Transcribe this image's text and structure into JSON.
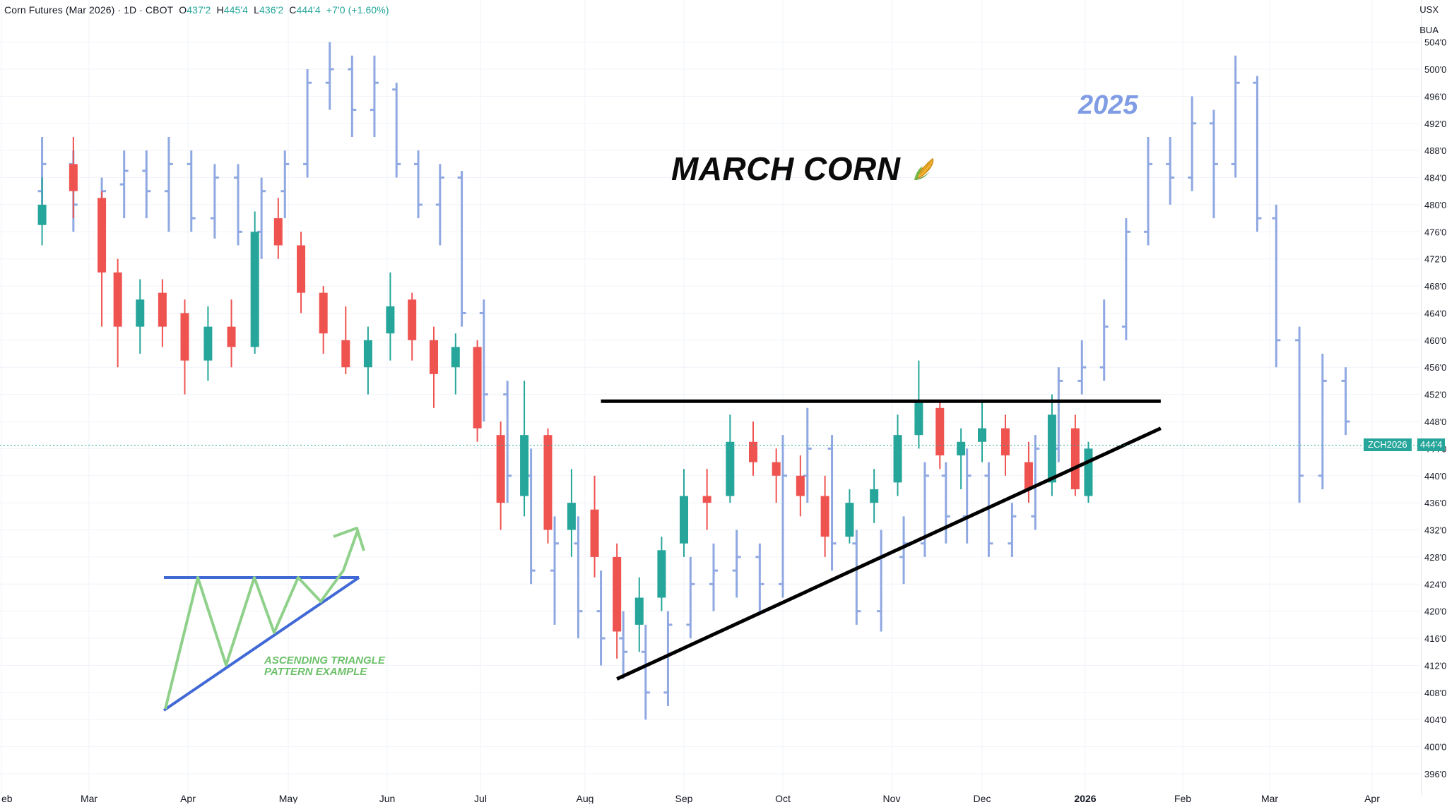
{
  "header": {
    "symbol": "Corn Futures (Mar 2026) · 1D · CBOT",
    "open_label": "O",
    "open": "437'2",
    "high_label": "H",
    "high": "445'4",
    "low_label": "L",
    "low": "436'2",
    "close_label": "C",
    "close": "444'4",
    "change": "+7'0 (+1.60%)"
  },
  "currency": "USX",
  "unit": "BUA",
  "title": "MARCH CORN",
  "title_icon": "corn-icon",
  "overlay_label": "2025",
  "pattern_note": [
    "ASCENDING TRIANGLE",
    "PATTERN EXAMPLE"
  ],
  "last_price_symbol": "ZCH2026",
  "last_price": "444'4",
  "colors": {
    "up": "#26a69a",
    "down": "#ef5350",
    "overlay": "#8fa8e2",
    "triangle": "#4169d6",
    "triangle_path": "#8fd18a",
    "trendline": "#000000",
    "grid": "#f0f3fa"
  },
  "chart_data": {
    "type": "candlestick",
    "title": "Corn Futures (Mar 2026) · 1D · CBOT",
    "ylim": [
      394,
      508
    ],
    "y_ticks": [
      "396'0",
      "400'0",
      "404'0",
      "408'0",
      "412'0",
      "416'0",
      "420'0",
      "424'0",
      "428'0",
      "432'0",
      "436'0",
      "440'0",
      "444'0",
      "448'0",
      "452'0",
      "456'0",
      "460'0",
      "464'0",
      "468'0",
      "472'0",
      "476'0",
      "480'0",
      "484'0",
      "488'0",
      "492'0",
      "496'0",
      "500'0",
      "504'0"
    ],
    "x_ticks": [
      "eb",
      "Mar",
      "Apr",
      "May",
      "Jun",
      "Jul",
      "Aug",
      "Sep",
      "Oct",
      "Nov",
      "Dec",
      "2026",
      "Feb",
      "Mar",
      "Apr"
    ],
    "series": [
      {
        "name": "ZCH2026",
        "style": "candles",
        "ohlc": [
          {
            "date": "2025-02-14",
            "o": 477,
            "h": 484,
            "l": 474,
            "c": 480
          },
          {
            "date": "2025-02-24",
            "o": 486,
            "h": 490,
            "l": 478,
            "c": 482
          },
          {
            "date": "2025-03-05",
            "o": 481,
            "h": 482,
            "l": 462,
            "c": 470
          },
          {
            "date": "2025-03-10",
            "o": 470,
            "h": 472,
            "l": 456,
            "c": 462
          },
          {
            "date": "2025-03-17",
            "o": 462,
            "h": 469,
            "l": 458,
            "c": 466
          },
          {
            "date": "2025-03-24",
            "o": 467,
            "h": 469,
            "l": 459,
            "c": 462
          },
          {
            "date": "2025-03-31",
            "o": 464,
            "h": 466,
            "l": 452,
            "c": 457
          },
          {
            "date": "2025-04-07",
            "o": 457,
            "h": 465,
            "l": 454,
            "c": 462
          },
          {
            "date": "2025-04-14",
            "o": 462,
            "h": 466,
            "l": 456,
            "c": 459
          },
          {
            "date": "2025-04-21",
            "o": 459,
            "h": 479,
            "l": 458,
            "c": 476
          },
          {
            "date": "2025-04-28",
            "o": 478,
            "h": 481,
            "l": 472,
            "c": 474
          },
          {
            "date": "2025-05-05",
            "o": 474,
            "h": 476,
            "l": 464,
            "c": 467
          },
          {
            "date": "2025-05-12",
            "o": 467,
            "h": 468,
            "l": 458,
            "c": 461
          },
          {
            "date": "2025-05-19",
            "o": 460,
            "h": 465,
            "l": 455,
            "c": 456
          },
          {
            "date": "2025-05-26",
            "o": 456,
            "h": 462,
            "l": 452,
            "c": 460
          },
          {
            "date": "2025-06-02",
            "o": 461,
            "h": 470,
            "l": 457,
            "c": 465
          },
          {
            "date": "2025-06-09",
            "o": 466,
            "h": 467,
            "l": 457,
            "c": 460
          },
          {
            "date": "2025-06-16",
            "o": 460,
            "h": 462,
            "l": 450,
            "c": 455
          },
          {
            "date": "2025-06-23",
            "o": 456,
            "h": 461,
            "l": 452,
            "c": 459
          },
          {
            "date": "2025-06-30",
            "o": 459,
            "h": 460,
            "l": 445,
            "c": 447
          },
          {
            "date": "2025-07-07",
            "o": 446,
            "h": 448,
            "l": 432,
            "c": 436
          },
          {
            "date": "2025-07-14",
            "o": 437,
            "h": 454,
            "l": 434,
            "c": 446
          },
          {
            "date": "2025-07-21",
            "o": 446,
            "h": 447,
            "l": 430,
            "c": 432
          },
          {
            "date": "2025-07-28",
            "o": 432,
            "h": 441,
            "l": 428,
            "c": 436
          },
          {
            "date": "2025-08-04",
            "o": 435,
            "h": 440,
            "l": 425,
            "c": 428
          },
          {
            "date": "2025-08-11",
            "o": 428,
            "h": 430,
            "l": 413,
            "c": 417
          },
          {
            "date": "2025-08-18",
            "o": 418,
            "h": 425,
            "l": 414,
            "c": 422
          },
          {
            "date": "2025-08-25",
            "o": 422,
            "h": 431,
            "l": 420,
            "c": 429
          },
          {
            "date": "2025-09-01",
            "o": 430,
            "h": 441,
            "l": 428,
            "c": 437
          },
          {
            "date": "2025-09-08",
            "o": 437,
            "h": 441,
            "l": 432,
            "c": 436
          },
          {
            "date": "2025-09-15",
            "o": 437,
            "h": 449,
            "l": 436,
            "c": 445
          },
          {
            "date": "2025-09-22",
            "o": 445,
            "h": 448,
            "l": 440,
            "c": 442
          },
          {
            "date": "2025-09-29",
            "o": 442,
            "h": 444,
            "l": 436,
            "c": 440
          },
          {
            "date": "2025-10-06",
            "o": 440,
            "h": 443,
            "l": 434,
            "c": 437
          },
          {
            "date": "2025-10-13",
            "o": 437,
            "h": 440,
            "l": 428,
            "c": 431
          },
          {
            "date": "2025-10-20",
            "o": 431,
            "h": 438,
            "l": 430,
            "c": 436
          },
          {
            "date": "2025-10-27",
            "o": 436,
            "h": 441,
            "l": 433,
            "c": 438
          },
          {
            "date": "2025-11-03",
            "o": 439,
            "h": 449,
            "l": 437,
            "c": 446
          },
          {
            "date": "2025-11-10",
            "o": 446,
            "h": 457,
            "l": 444,
            "c": 451
          },
          {
            "date": "2025-11-17",
            "o": 450,
            "h": 451,
            "l": 441,
            "c": 443
          },
          {
            "date": "2025-11-24",
            "o": 443,
            "h": 447,
            "l": 438,
            "c": 445
          },
          {
            "date": "2025-12-01",
            "o": 445,
            "h": 451,
            "l": 442,
            "c": 447
          },
          {
            "date": "2025-12-08",
            "o": 447,
            "h": 449,
            "l": 440,
            "c": 443
          },
          {
            "date": "2025-12-15",
            "o": 442,
            "h": 445,
            "l": 436,
            "c": 438
          },
          {
            "date": "2025-12-22",
            "o": 439,
            "h": 452,
            "l": 437,
            "c": 449
          },
          {
            "date": "2025-12-29",
            "o": 447,
            "h": 449,
            "l": 437,
            "c": 438
          },
          {
            "date": "2026-01-02",
            "o": 437,
            "h": 445,
            "l": 436,
            "c": 444
          }
        ]
      },
      {
        "name": "2025",
        "style": "ohlc-bars",
        "ohlc": [
          {
            "date": "2025-02-14",
            "o": 482,
            "h": 490,
            "l": 478,
            "c": 486
          },
          {
            "date": "2025-02-24",
            "o": 486,
            "h": 488,
            "l": 476,
            "c": 480
          },
          {
            "date": "2025-03-05",
            "o": 478,
            "h": 484,
            "l": 470,
            "c": 482
          },
          {
            "date": "2025-03-12",
            "o": 483,
            "h": 488,
            "l": 478,
            "c": 485
          },
          {
            "date": "2025-03-19",
            "o": 485,
            "h": 488,
            "l": 478,
            "c": 482
          },
          {
            "date": "2025-03-26",
            "o": 482,
            "h": 490,
            "l": 476,
            "c": 486
          },
          {
            "date": "2025-04-02",
            "o": 486,
            "h": 488,
            "l": 476,
            "c": 478
          },
          {
            "date": "2025-04-09",
            "o": 478,
            "h": 486,
            "l": 475,
            "c": 484
          },
          {
            "date": "2025-04-16",
            "o": 484,
            "h": 486,
            "l": 474,
            "c": 476
          },
          {
            "date": "2025-04-23",
            "o": 476,
            "h": 484,
            "l": 472,
            "c": 482
          },
          {
            "date": "2025-04-30",
            "o": 482,
            "h": 488,
            "l": 478,
            "c": 486
          },
          {
            "date": "2025-05-07",
            "o": 486,
            "h": 500,
            "l": 484,
            "c": 498
          },
          {
            "date": "2025-05-14",
            "o": 498,
            "h": 504,
            "l": 494,
            "c": 500
          },
          {
            "date": "2025-05-21",
            "o": 500,
            "h": 502,
            "l": 490,
            "c": 494
          },
          {
            "date": "2025-05-28",
            "o": 494,
            "h": 502,
            "l": 490,
            "c": 498
          },
          {
            "date": "2025-06-04",
            "o": 497,
            "h": 498,
            "l": 484,
            "c": 486
          },
          {
            "date": "2025-06-11",
            "o": 486,
            "h": 488,
            "l": 478,
            "c": 480
          },
          {
            "date": "2025-06-18",
            "o": 480,
            "h": 486,
            "l": 474,
            "c": 484
          },
          {
            "date": "2025-06-25",
            "o": 484,
            "h": 485,
            "l": 462,
            "c": 464
          },
          {
            "date": "2025-07-02",
            "o": 464,
            "h": 466,
            "l": 448,
            "c": 452
          },
          {
            "date": "2025-07-09",
            "o": 452,
            "h": 454,
            "l": 436,
            "c": 440
          },
          {
            "date": "2025-07-16",
            "o": 440,
            "h": 444,
            "l": 424,
            "c": 426
          },
          {
            "date": "2025-07-23",
            "o": 426,
            "h": 434,
            "l": 418,
            "c": 430
          },
          {
            "date": "2025-07-30",
            "o": 430,
            "h": 434,
            "l": 416,
            "c": 420
          },
          {
            "date": "2025-08-06",
            "o": 420,
            "h": 426,
            "l": 412,
            "c": 416
          },
          {
            "date": "2025-08-13",
            "o": 416,
            "h": 420,
            "l": 410,
            "c": 414
          },
          {
            "date": "2025-08-20",
            "o": 414,
            "h": 418,
            "l": 404,
            "c": 408
          },
          {
            "date": "2025-08-27",
            "o": 408,
            "h": 420,
            "l": 406,
            "c": 418
          },
          {
            "date": "2025-09-03",
            "o": 418,
            "h": 428,
            "l": 416,
            "c": 424
          },
          {
            "date": "2025-09-10",
            "o": 424,
            "h": 430,
            "l": 420,
            "c": 426
          },
          {
            "date": "2025-09-17",
            "o": 426,
            "h": 432,
            "l": 422,
            "c": 428
          },
          {
            "date": "2025-09-24",
            "o": 428,
            "h": 430,
            "l": 420,
            "c": 424
          },
          {
            "date": "2025-10-01",
            "o": 424,
            "h": 446,
            "l": 422,
            "c": 440
          },
          {
            "date": "2025-10-08",
            "o": 440,
            "h": 450,
            "l": 436,
            "c": 444
          },
          {
            "date": "2025-10-15",
            "o": 444,
            "h": 446,
            "l": 426,
            "c": 430
          },
          {
            "date": "2025-10-22",
            "o": 430,
            "h": 432,
            "l": 418,
            "c": 420
          },
          {
            "date": "2025-10-29",
            "o": 420,
            "h": 432,
            "l": 417,
            "c": 428
          },
          {
            "date": "2025-11-05",
            "o": 428,
            "h": 434,
            "l": 424,
            "c": 430
          },
          {
            "date": "2025-11-12",
            "o": 430,
            "h": 442,
            "l": 428,
            "c": 440
          },
          {
            "date": "2025-11-19",
            "o": 440,
            "h": 442,
            "l": 430,
            "c": 434
          },
          {
            "date": "2025-11-26",
            "o": 434,
            "h": 444,
            "l": 430,
            "c": 440
          },
          {
            "date": "2025-12-03",
            "o": 440,
            "h": 442,
            "l": 428,
            "c": 430
          },
          {
            "date": "2025-12-10",
            "o": 430,
            "h": 436,
            "l": 428,
            "c": 434
          },
          {
            "date": "2025-12-17",
            "o": 434,
            "h": 446,
            "l": 432,
            "c": 444
          },
          {
            "date": "2025-12-24",
            "o": 444,
            "h": 456,
            "l": 442,
            "c": 454
          },
          {
            "date": "2025-12-31",
            "o": 454,
            "h": 460,
            "l": 452,
            "c": 456
          },
          {
            "date": "2026-01-07",
            "o": 456,
            "h": 466,
            "l": 454,
            "c": 462
          },
          {
            "date": "2026-01-14",
            "o": 462,
            "h": 478,
            "l": 460,
            "c": 476
          },
          {
            "date": "2026-01-21",
            "o": 476,
            "h": 490,
            "l": 474,
            "c": 486
          },
          {
            "date": "2026-01-28",
            "o": 486,
            "h": 490,
            "l": 480,
            "c": 484
          },
          {
            "date": "2026-02-04",
            "o": 484,
            "h": 496,
            "l": 482,
            "c": 492
          },
          {
            "date": "2026-02-11",
            "o": 492,
            "h": 494,
            "l": 478,
            "c": 486
          },
          {
            "date": "2026-02-18",
            "o": 486,
            "h": 502,
            "l": 484,
            "c": 498
          },
          {
            "date": "2026-02-25",
            "o": 498,
            "h": 499,
            "l": 476,
            "c": 478
          },
          {
            "date": "2026-03-03",
            "o": 478,
            "h": 480,
            "l": 456,
            "c": 460
          },
          {
            "date": "2026-03-10",
            "o": 460,
            "h": 462,
            "l": 436,
            "c": 440
          },
          {
            "date": "2026-03-17",
            "o": 440,
            "h": 458,
            "l": 438,
            "c": 454
          },
          {
            "date": "2026-03-24",
            "o": 454,
            "h": 456,
            "l": 446,
            "c": 448
          }
        ]
      }
    ],
    "annotations": {
      "resistance": {
        "from": "2025-08-06",
        "to": "2026-01-25",
        "y": 451
      },
      "support": {
        "from": {
          "date": "2025-08-11",
          "y": 410
        },
        "to": {
          "date": "2026-01-25",
          "y": 447
        }
      },
      "last_price": 444.5
    }
  }
}
